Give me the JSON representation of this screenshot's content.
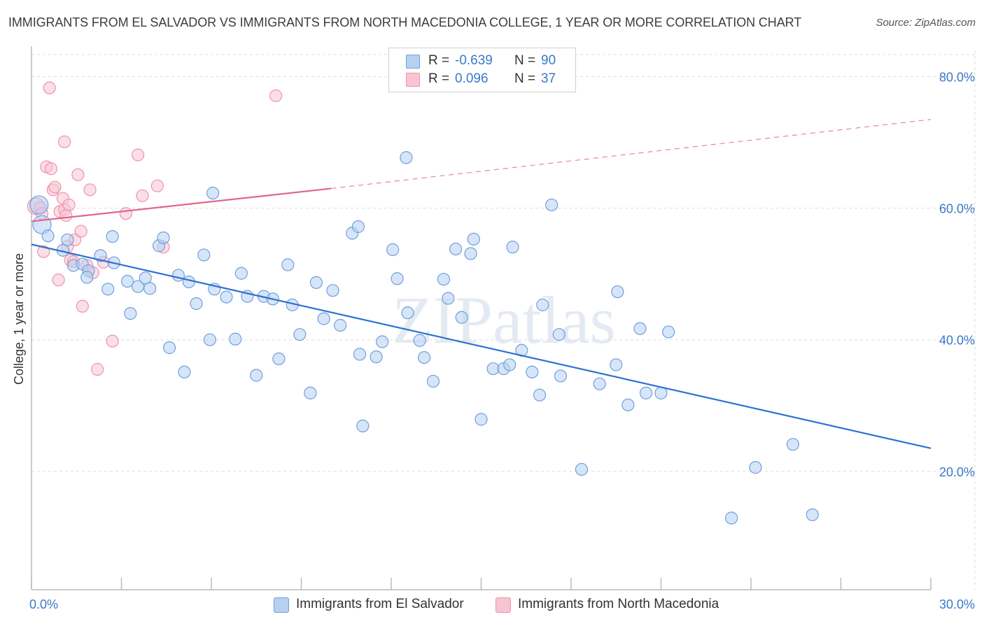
{
  "header": {
    "title": "IMMIGRANTS FROM EL SALVADOR VS IMMIGRANTS FROM NORTH MACEDONIA COLLEGE, 1 YEAR OR MORE CORRELATION CHART",
    "source": "Source: ZipAtlas.com"
  },
  "watermark": "ZIPatlas",
  "legend": {
    "rows": [
      {
        "r_label": "R =",
        "r_value": "-0.639",
        "n_label": "N =",
        "n_value": "90"
      },
      {
        "r_label": "R =",
        "r_value": "0.096",
        "n_label": "N =",
        "n_value": "37"
      }
    ]
  },
  "bottom_legend": [
    "Immigrants from El Salvador",
    "Immigrants from North Macedonia"
  ],
  "colors": {
    "blue_fill": "#b6d0f2",
    "blue_stroke": "#6fa0dd",
    "blue_line": "#2d72d2",
    "pink_fill": "#f8c4d2",
    "pink_stroke": "#ee92ad",
    "pink_line": "#e0668e",
    "tick_label": "#3b78c8",
    "grid": "#dddddd"
  },
  "chart_data": {
    "type": "scatter",
    "title": "IMMIGRANTS FROM EL SALVADOR VS IMMIGRANTS FROM NORTH MACEDONIA COLLEGE, 1 YEAR OR MORE CORRELATION CHART",
    "xlabel": "",
    "ylabel": "College, 1 year or more",
    "xlim": [
      0,
      30
    ],
    "ylim": [
      2,
      84
    ],
    "x_tick_labels": [
      "0.0%",
      "30.0%"
    ],
    "y_ticks": [
      20,
      40,
      60,
      80
    ],
    "y_tick_labels": [
      "20.0%",
      "40.0%",
      "60.0%",
      "80.0%"
    ],
    "grid": true,
    "legend_position": "top-center",
    "series": [
      {
        "name": "Immigrants from El Salvador",
        "color": "#6fa0dd",
        "trend": {
          "x": [
            0,
            30
          ],
          "y": [
            54.5,
            23.5
          ],
          "dashed_beyond": null
        },
        "points": [
          {
            "x": 0.25,
            "y": 60.5,
            "big": true
          },
          {
            "x": 0.35,
            "y": 57.5,
            "big": true
          },
          {
            "x": 0.55,
            "y": 55.8
          },
          {
            "x": 1.2,
            "y": 55.2
          },
          {
            "x": 1.05,
            "y": 53.6
          },
          {
            "x": 1.4,
            "y": 51.3
          },
          {
            "x": 1.7,
            "y": 51.5
          },
          {
            "x": 1.9,
            "y": 50.5
          },
          {
            "x": 1.85,
            "y": 49.5
          },
          {
            "x": 2.3,
            "y": 52.8
          },
          {
            "x": 2.55,
            "y": 47.7
          },
          {
            "x": 2.75,
            "y": 51.7
          },
          {
            "x": 2.7,
            "y": 55.7
          },
          {
            "x": 3.2,
            "y": 48.9
          },
          {
            "x": 3.3,
            "y": 44
          },
          {
            "x": 3.55,
            "y": 48.1
          },
          {
            "x": 3.8,
            "y": 49.4
          },
          {
            "x": 3.95,
            "y": 47.8
          },
          {
            "x": 4.25,
            "y": 54.3
          },
          {
            "x": 4.4,
            "y": 55.5
          },
          {
            "x": 4.6,
            "y": 38.8
          },
          {
            "x": 4.9,
            "y": 49.8
          },
          {
            "x": 5.1,
            "y": 35.1
          },
          {
            "x": 5.25,
            "y": 48.8
          },
          {
            "x": 5.5,
            "y": 45.5
          },
          {
            "x": 5.75,
            "y": 52.9
          },
          {
            "x": 5.95,
            "y": 40
          },
          {
            "x": 6.05,
            "y": 62.3
          },
          {
            "x": 6.1,
            "y": 47.7
          },
          {
            "x": 6.5,
            "y": 46.5
          },
          {
            "x": 6.8,
            "y": 40.1
          },
          {
            "x": 7.0,
            "y": 50.1
          },
          {
            "x": 7.2,
            "y": 46.6
          },
          {
            "x": 7.5,
            "y": 34.6
          },
          {
            "x": 7.75,
            "y": 46.6
          },
          {
            "x": 8.05,
            "y": 46.2
          },
          {
            "x": 8.25,
            "y": 37.1
          },
          {
            "x": 8.55,
            "y": 51.4
          },
          {
            "x": 8.7,
            "y": 45.3
          },
          {
            "x": 8.95,
            "y": 40.8
          },
          {
            "x": 9.3,
            "y": 31.9
          },
          {
            "x": 9.5,
            "y": 48.7
          },
          {
            "x": 9.75,
            "y": 43.2
          },
          {
            "x": 10.05,
            "y": 47.5
          },
          {
            "x": 10.3,
            "y": 42.2
          },
          {
            "x": 10.7,
            "y": 56.2
          },
          {
            "x": 10.9,
            "y": 57.2
          },
          {
            "x": 10.95,
            "y": 37.8
          },
          {
            "x": 11.05,
            "y": 26.9
          },
          {
            "x": 11.5,
            "y": 37.4
          },
          {
            "x": 11.7,
            "y": 39.7
          },
          {
            "x": 12.05,
            "y": 53.7
          },
          {
            "x": 12.2,
            "y": 49.3
          },
          {
            "x": 12.5,
            "y": 67.7
          },
          {
            "x": 12.55,
            "y": 44.1
          },
          {
            "x": 12.95,
            "y": 39.9
          },
          {
            "x": 13.1,
            "y": 37.3
          },
          {
            "x": 13.4,
            "y": 33.7
          },
          {
            "x": 13.75,
            "y": 49.2
          },
          {
            "x": 13.9,
            "y": 46.3
          },
          {
            "x": 14.15,
            "y": 53.8
          },
          {
            "x": 14.35,
            "y": 43.4
          },
          {
            "x": 14.65,
            "y": 53.1
          },
          {
            "x": 14.75,
            "y": 55.3
          },
          {
            "x": 15.0,
            "y": 27.9
          },
          {
            "x": 15.4,
            "y": 35.6
          },
          {
            "x": 15.75,
            "y": 35.6
          },
          {
            "x": 15.95,
            "y": 36.2
          },
          {
            "x": 16.05,
            "y": 54.1
          },
          {
            "x": 16.35,
            "y": 38.4
          },
          {
            "x": 16.7,
            "y": 35.1
          },
          {
            "x": 16.95,
            "y": 31.6
          },
          {
            "x": 17.05,
            "y": 45.3
          },
          {
            "x": 17.35,
            "y": 60.5
          },
          {
            "x": 17.6,
            "y": 40.8
          },
          {
            "x": 17.65,
            "y": 34.5
          },
          {
            "x": 18.35,
            "y": 20.3
          },
          {
            "x": 18.95,
            "y": 33.3
          },
          {
            "x": 19.5,
            "y": 36.2
          },
          {
            "x": 19.55,
            "y": 47.3
          },
          {
            "x": 19.9,
            "y": 30.1
          },
          {
            "x": 20.3,
            "y": 41.7
          },
          {
            "x": 20.5,
            "y": 31.9
          },
          {
            "x": 21.0,
            "y": 31.9
          },
          {
            "x": 21.25,
            "y": 41.2
          },
          {
            "x": 23.35,
            "y": 12.9
          },
          {
            "x": 24.15,
            "y": 20.6
          },
          {
            "x": 25.4,
            "y": 24.1
          },
          {
            "x": 26.05,
            "y": 13.4
          }
        ]
      },
      {
        "name": "Immigrants from North Macedonia",
        "color": "#ee92ad",
        "trend": {
          "x": [
            0,
            10
          ],
          "y": [
            58.0,
            63.0
          ],
          "dashed_to": [
            30,
            73.5
          ]
        },
        "points": [
          {
            "x": 0.15,
            "y": 60.3,
            "big": true
          },
          {
            "x": 0.3,
            "y": 60.1
          },
          {
            "x": 0.35,
            "y": 59.2
          },
          {
            "x": 0.4,
            "y": 53.4
          },
          {
            "x": 0.5,
            "y": 66.3
          },
          {
            "x": 0.6,
            "y": 78.3
          },
          {
            "x": 0.65,
            "y": 66
          },
          {
            "x": 0.72,
            "y": 62.8
          },
          {
            "x": 0.78,
            "y": 63.2
          },
          {
            "x": 0.9,
            "y": 49.1
          },
          {
            "x": 0.95,
            "y": 59.5
          },
          {
            "x": 1.05,
            "y": 61.5
          },
          {
            "x": 1.1,
            "y": 59.8
          },
          {
            "x": 1.1,
            "y": 70.1
          },
          {
            "x": 1.15,
            "y": 58.9
          },
          {
            "x": 1.2,
            "y": 54.2
          },
          {
            "x": 1.25,
            "y": 60.5
          },
          {
            "x": 1.3,
            "y": 52.1
          },
          {
            "x": 1.4,
            "y": 51.9
          },
          {
            "x": 1.45,
            "y": 55.2
          },
          {
            "x": 1.55,
            "y": 65.1
          },
          {
            "x": 1.65,
            "y": 56.5
          },
          {
            "x": 1.7,
            "y": 45.1
          },
          {
            "x": 1.85,
            "y": 51.3
          },
          {
            "x": 1.95,
            "y": 62.8
          },
          {
            "x": 2.05,
            "y": 50.2
          },
          {
            "x": 2.2,
            "y": 35.5
          },
          {
            "x": 2.4,
            "y": 51.8
          },
          {
            "x": 2.7,
            "y": 39.8
          },
          {
            "x": 3.15,
            "y": 59.2
          },
          {
            "x": 3.55,
            "y": 68.1
          },
          {
            "x": 3.7,
            "y": 61.9
          },
          {
            "x": 4.2,
            "y": 63.4
          },
          {
            "x": 4.4,
            "y": 54.1
          },
          {
            "x": 8.15,
            "y": 77.1
          }
        ]
      }
    ]
  }
}
